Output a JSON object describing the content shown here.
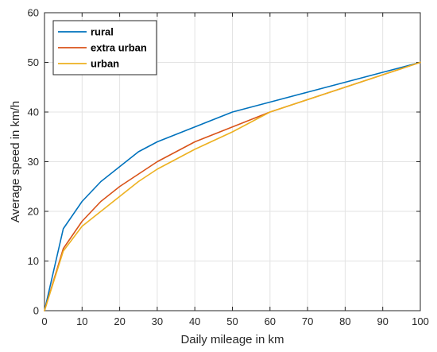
{
  "chart_data": {
    "type": "line",
    "title": "",
    "xlabel": "Daily mileage in km",
    "ylabel": "Average speed in km/h",
    "xlim": [
      0,
      100
    ],
    "ylim": [
      0,
      60
    ],
    "xticks": [
      0,
      10,
      20,
      30,
      40,
      50,
      60,
      70,
      80,
      90,
      100
    ],
    "yticks": [
      0,
      10,
      20,
      30,
      40,
      50,
      60
    ],
    "grid": true,
    "legend_position": "top-left",
    "series": [
      {
        "name": "rural",
        "color": "#0072BD",
        "x": [
          0,
          5,
          10,
          15,
          20,
          25,
          30,
          40,
          50,
          60,
          70,
          80,
          90,
          100
        ],
        "y": [
          0,
          16.5,
          22,
          26,
          29,
          32,
          34,
          37,
          40,
          42,
          44,
          46,
          48,
          50
        ]
      },
      {
        "name": "extra urban",
        "color": "#D95319",
        "x": [
          0,
          5,
          10,
          15,
          20,
          30,
          40,
          50,
          60,
          70,
          80,
          90,
          100
        ],
        "y": [
          0,
          12.5,
          18,
          22,
          25,
          30,
          34,
          37,
          40,
          42.5,
          45,
          47.5,
          50
        ]
      },
      {
        "name": "urban",
        "color": "#EDB120",
        "x": [
          0,
          5,
          10,
          15,
          20,
          25,
          30,
          40,
          50,
          60,
          70,
          80,
          90,
          100
        ],
        "y": [
          0,
          12,
          17,
          20,
          23,
          26,
          28.5,
          32.5,
          36,
          40,
          42.5,
          45,
          47.5,
          50
        ]
      }
    ]
  }
}
